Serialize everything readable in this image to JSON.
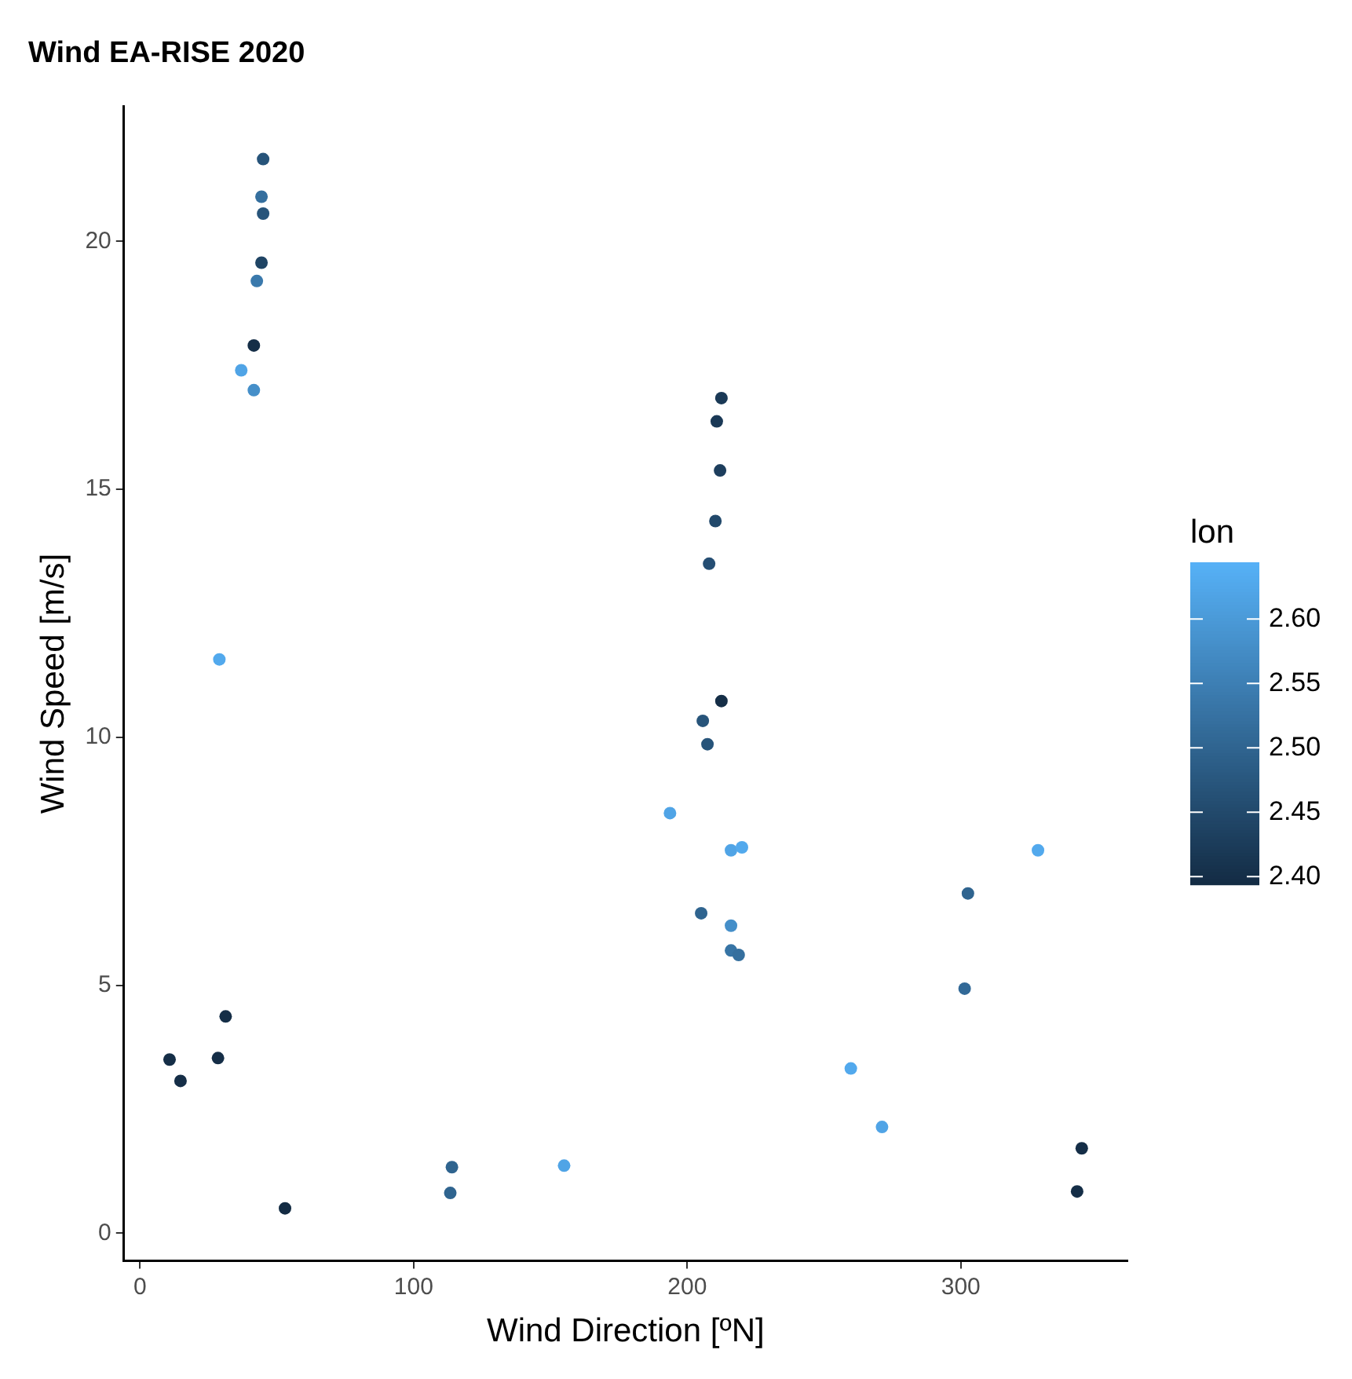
{
  "chart_data": {
    "type": "scatter",
    "title": "Wind EA-RISE 2020",
    "xlabel": "Wind Direction [ºN]",
    "ylabel": "Wind Speed [m/s]",
    "clabel": "lon",
    "x": [
      45,
      44.4,
      45,
      44.4,
      42.7,
      41.6,
      37,
      41.6,
      29,
      212.5,
      210.8,
      212,
      210.3,
      208,
      212.5,
      205.7,
      207.4,
      193.7,
      216,
      220,
      205.1,
      216,
      216,
      218.8,
      10.8,
      14.8,
      28.5,
      31.3,
      53,
      114,
      113.4,
      155,
      328.2,
      302.6,
      301.4,
      259.8,
      271.2,
      344.2,
      342.5
    ],
    "values": [
      21.66,
      20.9,
      20.56,
      19.57,
      19.2,
      17.9,
      17.4,
      17.0,
      11.57,
      16.84,
      16.37,
      15.38,
      14.36,
      13.5,
      10.73,
      10.33,
      9.86,
      8.47,
      7.72,
      7.78,
      6.45,
      6.2,
      5.7,
      5.61,
      3.5,
      3.07,
      3.53,
      4.37,
      0.5,
      1.33,
      0.81,
      1.36,
      7.72,
      6.85,
      4.93,
      3.32,
      2.14,
      1.71,
      0.84
    ],
    "cvalues": [
      2.47,
      2.52,
      2.47,
      2.44,
      2.54,
      2.4,
      2.62,
      2.58,
      2.63,
      2.42,
      2.42,
      2.43,
      2.45,
      2.46,
      2.4,
      2.47,
      2.47,
      2.62,
      2.62,
      2.63,
      2.5,
      2.58,
      2.53,
      2.52,
      2.4,
      2.4,
      2.4,
      2.4,
      2.39,
      2.5,
      2.5,
      2.62,
      2.63,
      2.5,
      2.51,
      2.63,
      2.62,
      2.4,
      2.4
    ],
    "xlim": [
      -5.9,
      360.9
    ],
    "xticks": [
      0,
      100,
      200,
      300
    ],
    "ylim": [
      -0.56,
      22.72
    ],
    "yticks": [
      0,
      5,
      10,
      15,
      20
    ],
    "clim": [
      2.394,
      2.644
    ],
    "cticks": [
      {
        "value": 2.4,
        "label": "2.40"
      },
      {
        "value": 2.45,
        "label": "2.45"
      },
      {
        "value": 2.5,
        "label": "2.50"
      },
      {
        "value": 2.55,
        "label": "2.55"
      },
      {
        "value": 2.6,
        "label": "2.60"
      }
    ],
    "grid": false,
    "marker": "circle",
    "legend": false
  }
}
